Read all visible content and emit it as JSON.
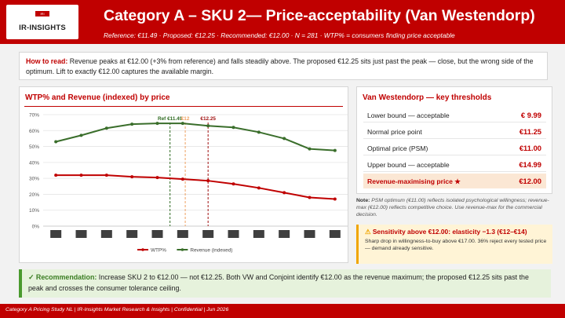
{
  "header": {
    "logo_badge": "IRI",
    "logo_text": "IR-INSIGHTS",
    "title": "Category A – SKU 2— Price-acceptability (Van Westendorp)",
    "subtitle": "Reference: €11.49  ·  Proposed: €12.25  ·  Recommended: €12.00  ·  N = 281  ·  WTP% = consumers finding price acceptable"
  },
  "howto": {
    "label": "How to read:",
    "text": " Revenue peaks at €12.00 (+3% from reference) and falls steadily above. The proposed €12.25 sits just past the peak — close, but the wrong side of the optimum. Lift to exactly €12.00 captures the available margin."
  },
  "chart_panel": {
    "title": "WTP% and Revenue (indexed) by price"
  },
  "chart_data": {
    "type": "line",
    "x": [
      1,
      2,
      3,
      4,
      5,
      6,
      7,
      8,
      9,
      10,
      11,
      12
    ],
    "x_tick_labels": [
      "",
      "",
      "",
      "",
      "",
      "",
      "",
      "",
      "",
      "",
      "",
      ""
    ],
    "series": [
      {
        "name": "WTP%",
        "color": "#c00000",
        "values": [
          32,
          32,
          32,
          31,
          30.5,
          29.5,
          28.5,
          26.5,
          24,
          21,
          18,
          17
        ]
      },
      {
        "name": "Revenue (indexed)",
        "color": "#3a6e2b",
        "values": [
          53,
          57,
          61.5,
          64,
          64.5,
          64.5,
          63,
          62,
          59,
          55,
          48.5,
          47.5
        ]
      }
    ],
    "y_ticks": [
      "0%",
      "10%",
      "20%",
      "30%",
      "40%",
      "50%",
      "60%",
      "70%"
    ],
    "ylim": [
      0,
      70
    ],
    "grid": true,
    "legend": "bottom",
    "reference_lines": [
      {
        "label": "Ref €11.49",
        "x": 5.5,
        "color": "#2f6b22"
      },
      {
        "label": "€12",
        "x": 6.1,
        "color": "#f0a060"
      },
      {
        "label": "€12.25",
        "x": 7,
        "color": "#a01010"
      }
    ]
  },
  "thresholds": {
    "title": "Van Westendorp — key thresholds",
    "rows": [
      {
        "label": "Lower bound — acceptable",
        "value": "€ 9.99"
      },
      {
        "label": "Normal price point",
        "value": "€11.25"
      },
      {
        "label": "Optimal price (PSM)",
        "value": "€11.00"
      },
      {
        "label": "Upper bound — acceptable",
        "value": "€14.99"
      },
      {
        "label": "Revenue-maximising price ★",
        "value": "€12.00"
      }
    ]
  },
  "note": {
    "label": "Note:",
    "text": " PSM optimum (€11.00) reflects isolated psychological willingness; revenue-max (€12.00) reflects competitive choice. Use revenue-max for the commercial decision."
  },
  "sensitivity": {
    "icon": "warning-icon",
    "title": "Sensitivity above €12.00: elasticity −1.3 (€12–€14)",
    "body": "Sharp drop in willingness-to-buy above €17.00. 36% reject every tested price — demand already sensitive."
  },
  "recommendation": {
    "check": "✓",
    "label": "Recommendation:",
    "text": " Increase SKU 2 to €12.00 — not €12.25. Both VW and Conjoint identify €12.00 as the revenue maximum; the proposed €12.25 sits past the peak and crosses the consumer tolerance ceiling."
  },
  "footer": {
    "text": "Category A Pricing Study NL  |  IR-Insights Market Research & Insights  |  Confidential  |  Jun 2026"
  },
  "colors": {
    "brand_red": "#c00000",
    "revenue_green": "#3a6e2b",
    "highlight": "#fbe7d4",
    "warning": "#f0a500",
    "rec_green": "#4a9a2e"
  }
}
